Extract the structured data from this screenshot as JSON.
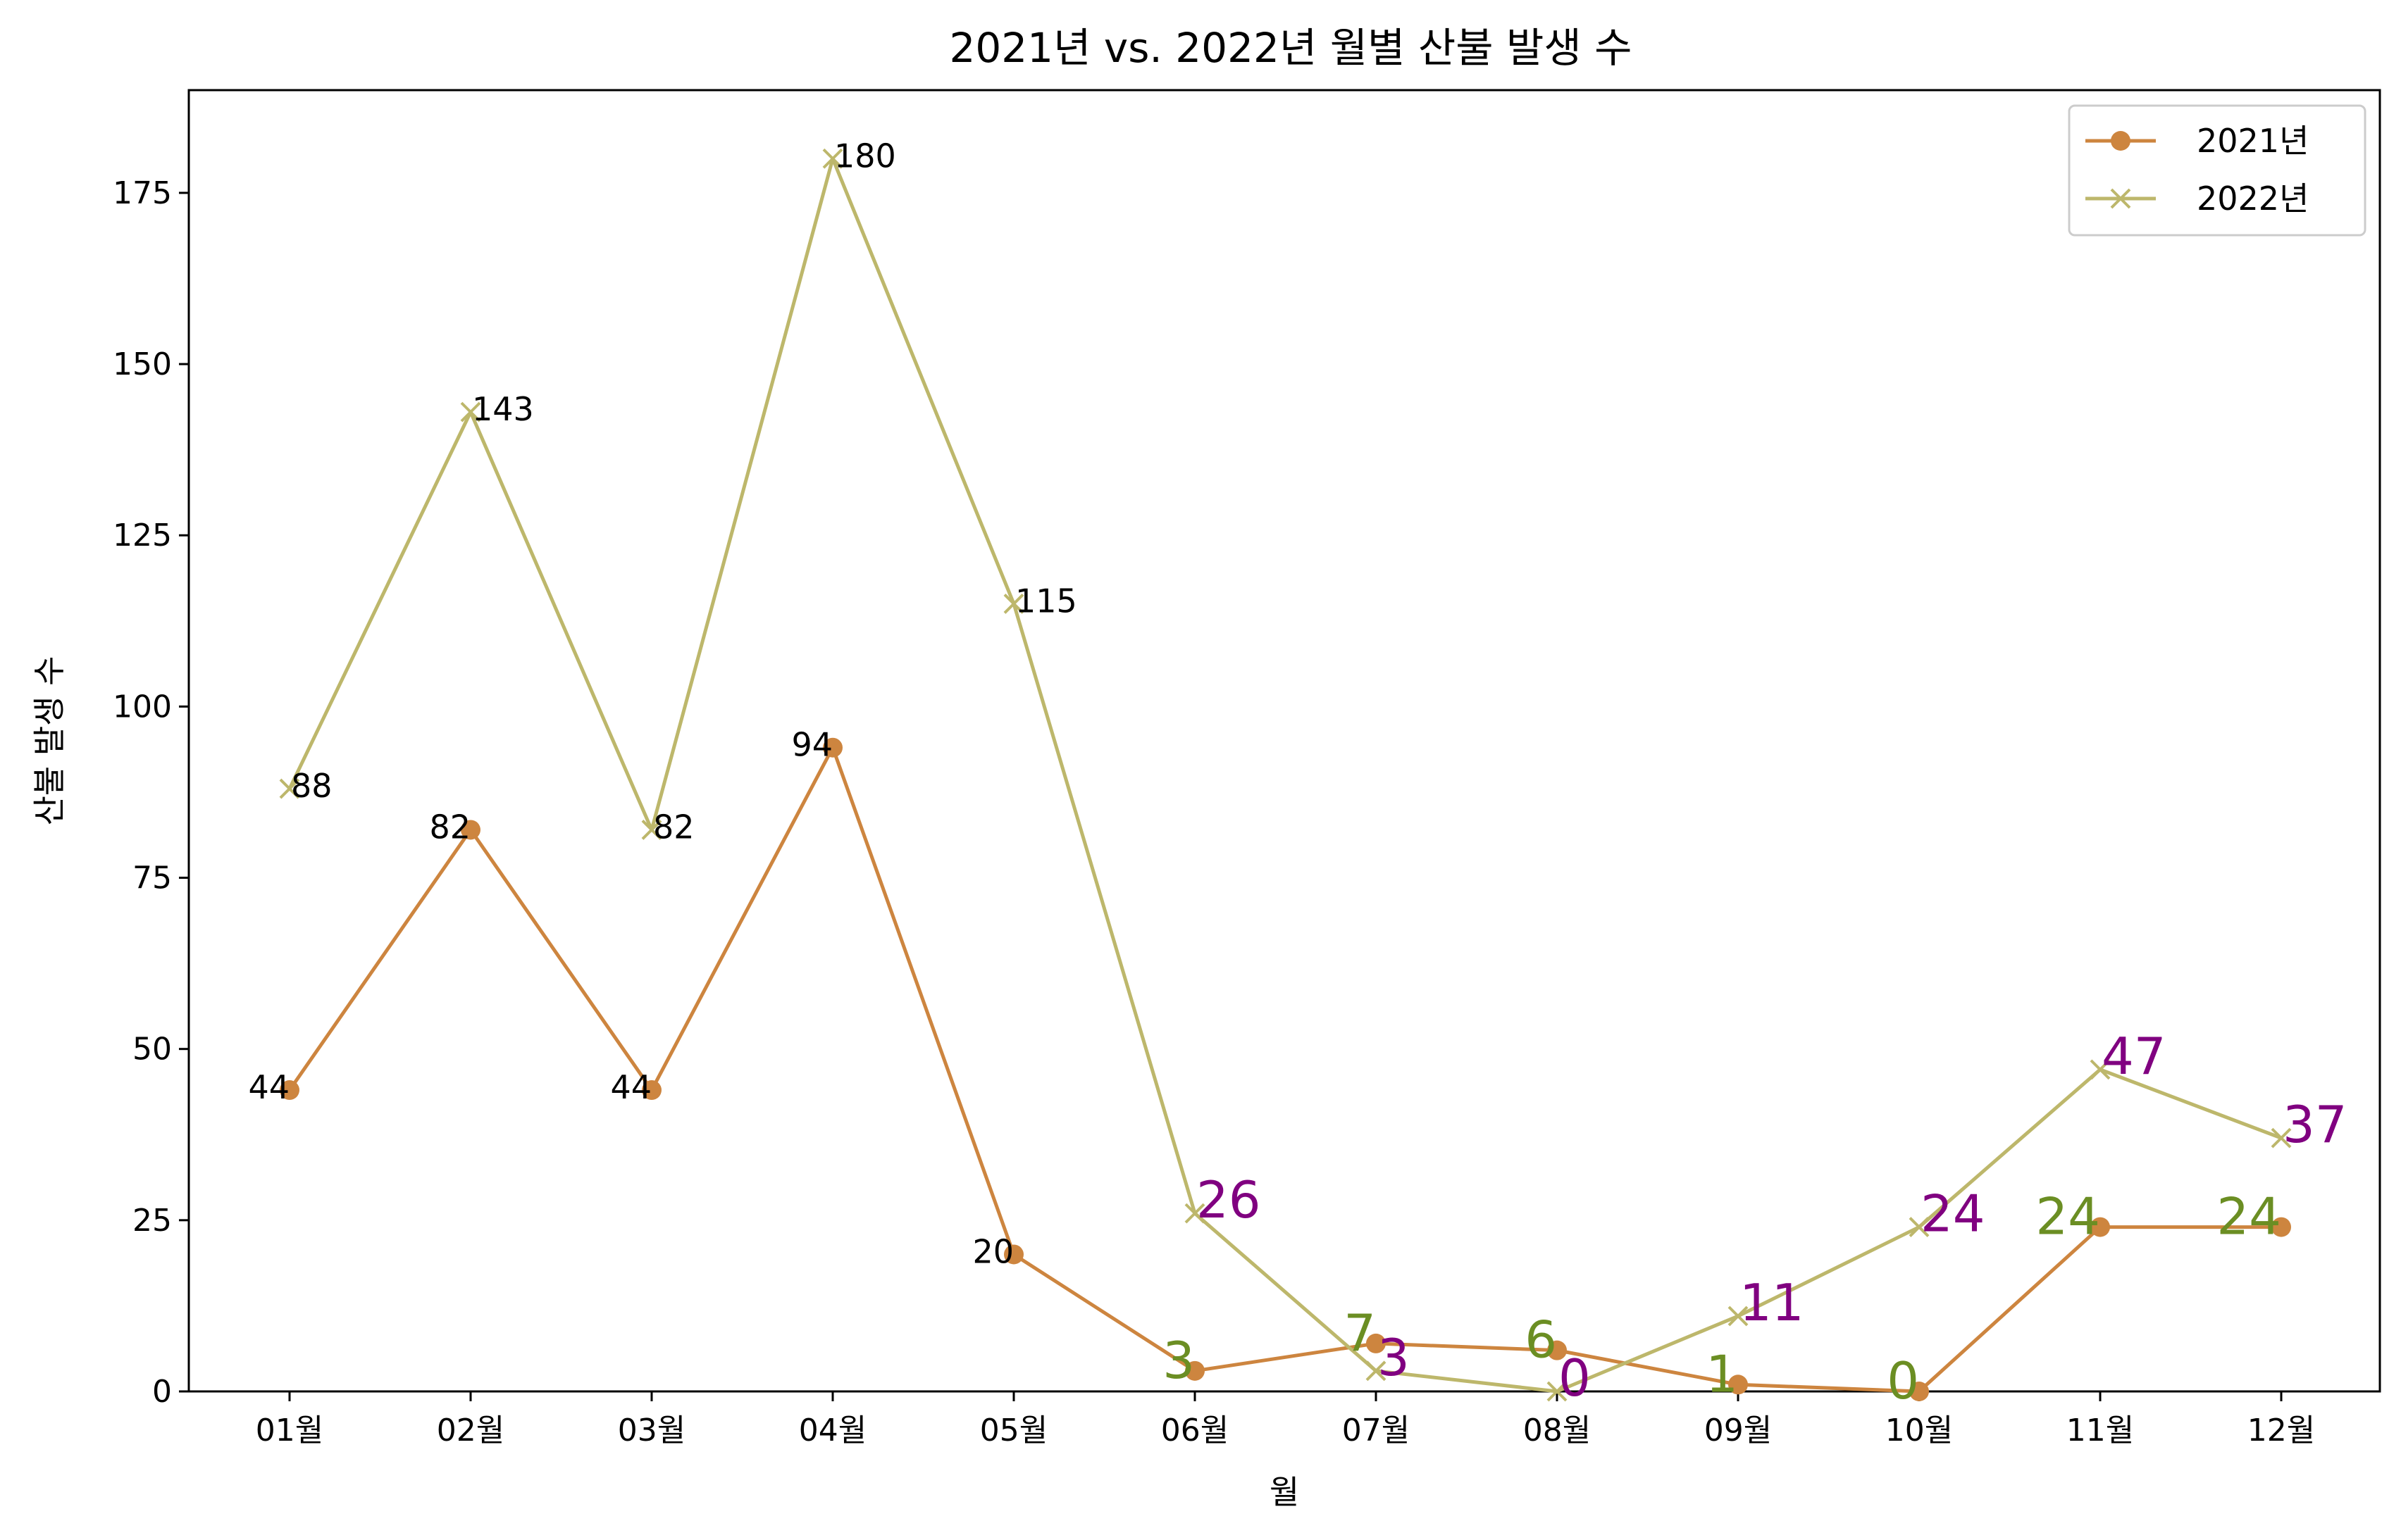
{
  "chart_data": {
    "type": "line",
    "title": "2021년 vs. 2022년 월별 산불 발생 수",
    "xlabel": "월",
    "ylabel": "산불 발생 수",
    "categories": [
      "01월",
      "02월",
      "03월",
      "04월",
      "05월",
      "06월",
      "07월",
      "08월",
      "09월",
      "10월",
      "11월",
      "12월"
    ],
    "ylim": [
      0,
      190
    ],
    "yticks": [
      0,
      25,
      50,
      75,
      100,
      125,
      150,
      175
    ],
    "grid": false,
    "legend_position": "top-right",
    "series": [
      {
        "name": "2021년",
        "color": "#CD853F",
        "marker": "circle",
        "values": [
          44,
          82,
          44,
          94,
          20,
          3,
          7,
          6,
          1,
          0,
          24,
          24
        ],
        "label_colors": [
          "#000000",
          "#000000",
          "#000000",
          "#000000",
          "#000000",
          "#6B8E23",
          "#6B8E23",
          "#6B8E23",
          "#6B8E23",
          "#6B8E23",
          "#6B8E23",
          "#6B8E23"
        ]
      },
      {
        "name": "2022년",
        "color": "#BDB76B",
        "marker": "x",
        "values": [
          88,
          143,
          82,
          180,
          115,
          26,
          3,
          0,
          11,
          24,
          47,
          37
        ],
        "label_colors": [
          "#000000",
          "#000000",
          "#000000",
          "#000000",
          "#000000",
          "#800080",
          "#800080",
          "#800080",
          "#800080",
          "#800080",
          "#800080",
          "#800080"
        ]
      }
    ]
  }
}
